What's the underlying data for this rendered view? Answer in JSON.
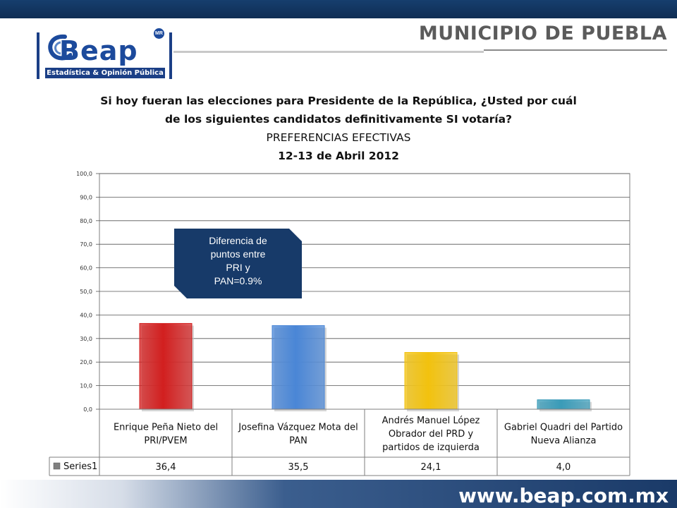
{
  "header": {
    "logo_text": "Beap",
    "logo_mark": "MR",
    "logo_subtitle": "Estadística & Opinión Pública",
    "region_title": "MUNICIPIO DE PUEBLA"
  },
  "title": {
    "line1": "Si hoy fueran las elecciones para Presidente de la República, ¿Usted por cuál",
    "line2": "de los siguientes candidatos definitivamente SI votaría?",
    "line3": "PREFERENCIAS EFECTIVAS",
    "line4": "12-13 de Abril 2012"
  },
  "callout": {
    "lines": [
      "Diferencia de",
      "puntos entre",
      "PRI y",
      "PAN=0.9%"
    ]
  },
  "footer": {
    "website": "www.beap.com.mx"
  },
  "colors": {
    "bars": [
      "#d21f1f",
      "#4a86d6",
      "#f2c20e",
      "#3a9bb8"
    ],
    "callout": "#173a69",
    "header_band": "#163e6e"
  },
  "chart_data": {
    "type": "bar",
    "categories": [
      [
        "Enrique Peña Nieto del",
        "PRI/PVEM"
      ],
      [
        "Josefina Vázquez Mota del",
        "PAN"
      ],
      [
        "Andrés Manuel López",
        "Obrador del PRD y",
        "partidos de izquierda"
      ],
      [
        "Gabriel Quadri del Partido",
        "Nueva Alianza"
      ]
    ],
    "series": [
      {
        "name": "Series1",
        "values": [
          36.4,
          35.5,
          24.1,
          4.0
        ],
        "labels": [
          "36,4",
          "35,5",
          "24,1",
          "4,0"
        ]
      }
    ],
    "ylim": [
      0,
      100
    ],
    "yticks": [
      "0,0",
      "10,0",
      "20,0",
      "30,0",
      "40,0",
      "50,0",
      "60,0",
      "70,0",
      "80,0",
      "90,0",
      "100,0"
    ],
    "grid": true,
    "legend": "data-table"
  }
}
